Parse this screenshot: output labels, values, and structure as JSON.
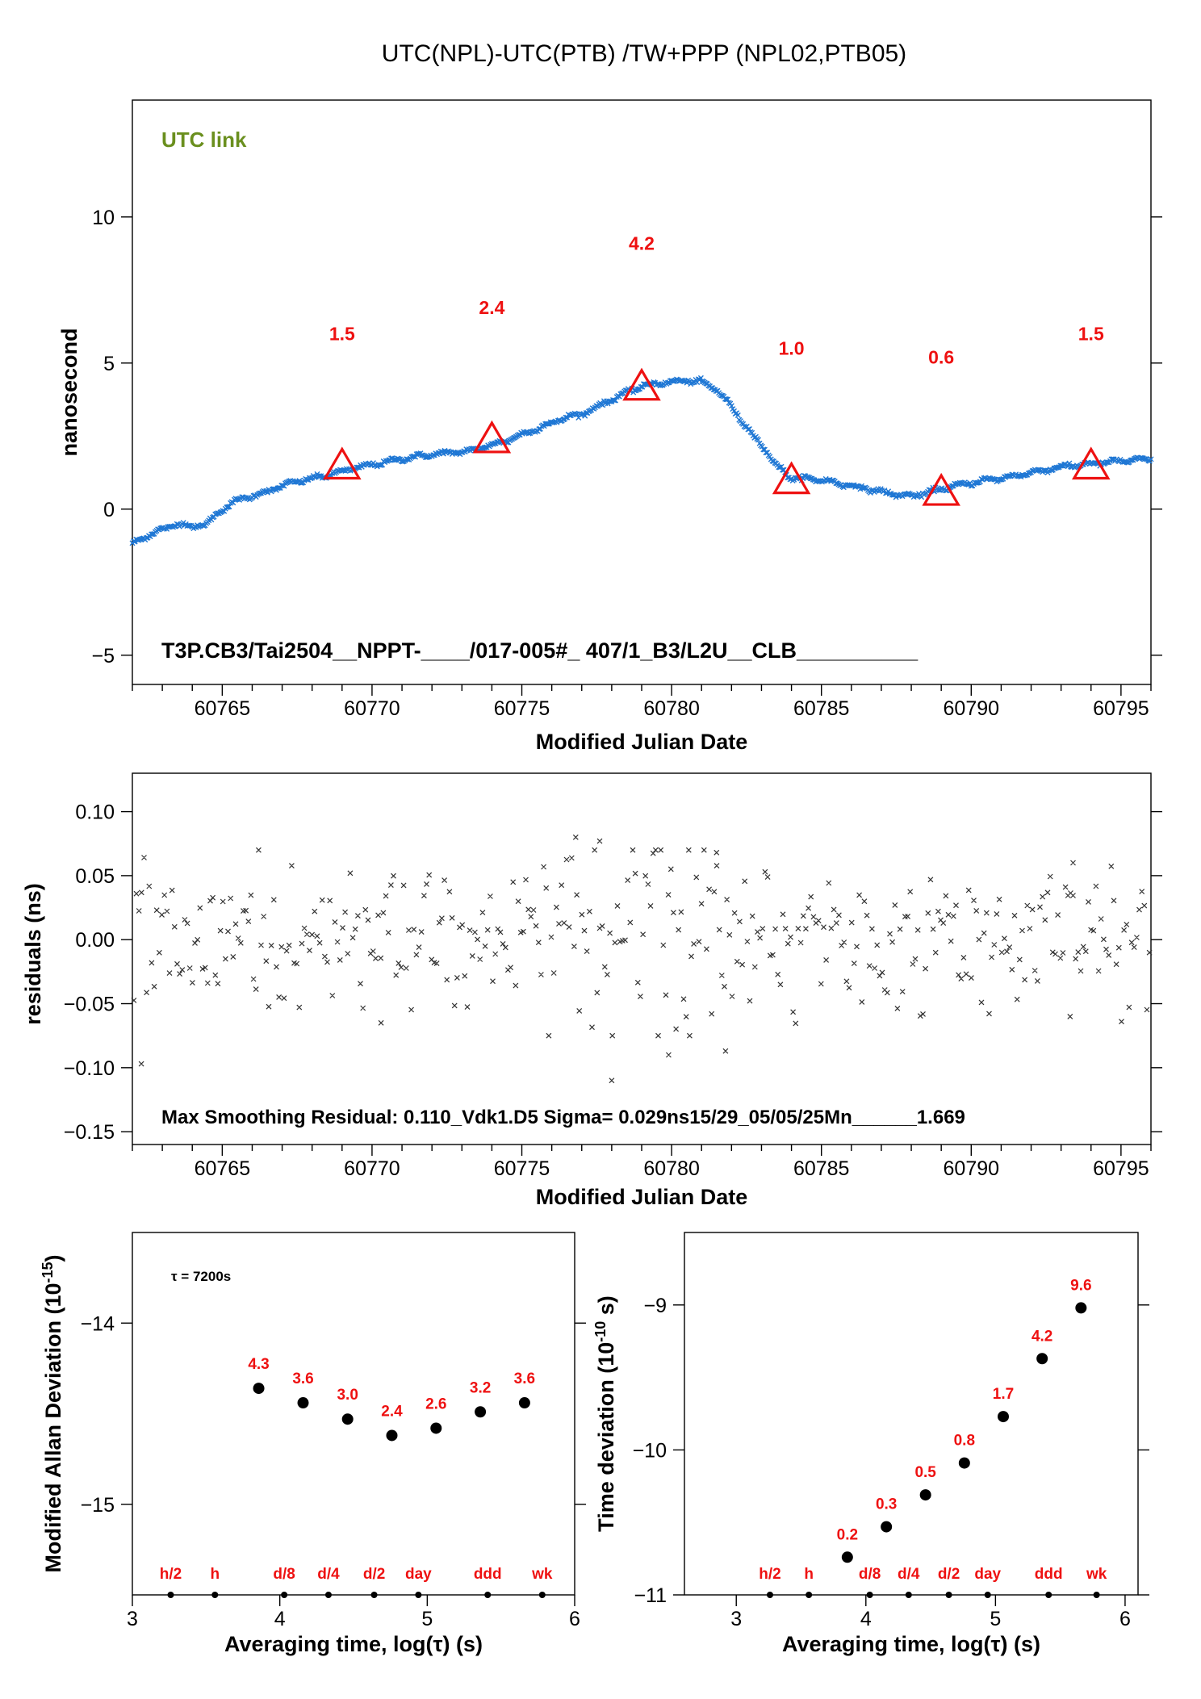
{
  "title": "UTC(NPL)-UTC(PTB)  /TW+PPP  (NPL02,PTB05)",
  "colors": {
    "series": "#1f77d4",
    "markers": "#ee1111",
    "utc_link": "#6a8f1e",
    "residuals": "#333333"
  },
  "chart_data": [
    {
      "type": "line",
      "name": "link",
      "title": "UTC(NPL)-UTC(PTB)  /TW+PPP  (NPL02,PTB05)",
      "annotation": "UTC link",
      "footer": "T3P.CB3/Tai2504__NPPT-____/017-005#_  407/1_B3/L2U__CLB__________",
      "xlabel": "Modified Julian Date",
      "ylabel": "nanosecond",
      "xlim": [
        60762,
        60796
      ],
      "ylim": [
        -6,
        14
      ],
      "xticks": [
        60765,
        60770,
        60775,
        60780,
        60785,
        60790,
        60795
      ],
      "yticks": [
        -5,
        0,
        5,
        10
      ],
      "yticklabels": [
        "−5",
        "0",
        "5",
        "10"
      ],
      "series_x": [
        60762.0,
        60762.5,
        60763.0,
        60763.5,
        60764.0,
        60764.5,
        60765.0,
        60765.5,
        60766.0,
        60766.5,
        60767.0,
        60767.5,
        60768.0,
        60768.5,
        60769.0,
        60769.5,
        60770.0,
        60770.5,
        60771.0,
        60771.5,
        60772.0,
        60772.5,
        60773.0,
        60773.5,
        60774.0,
        60774.5,
        60775.0,
        60775.5,
        60776.0,
        60776.5,
        60777.0,
        60777.5,
        60778.0,
        60778.5,
        60779.0,
        60779.5,
        60780.0,
        60780.5,
        60781.0,
        60781.5,
        60782.0,
        60782.5,
        60783.0,
        60783.5,
        60784.0,
        60784.5,
        60785.0,
        60785.5,
        60786.0,
        60786.5,
        60787.0,
        60787.5,
        60788.0,
        60788.5,
        60789.0,
        60789.5,
        60790.0,
        60790.5,
        60791.0,
        60791.5,
        60792.0,
        60792.5,
        60793.0,
        60793.5,
        60794.0,
        60794.5,
        60795.0,
        60795.5,
        60796.0
      ],
      "series_y": [
        -1.2,
        -0.9,
        -0.7,
        -0.5,
        -0.6,
        -0.5,
        0.0,
        0.3,
        0.45,
        0.6,
        0.8,
        0.95,
        1.05,
        1.15,
        1.3,
        1.42,
        1.52,
        1.62,
        1.72,
        1.8,
        1.87,
        1.93,
        1.95,
        2.05,
        2.2,
        2.35,
        2.55,
        2.75,
        2.95,
        3.15,
        3.25,
        3.5,
        3.75,
        4.0,
        4.2,
        4.3,
        4.35,
        4.4,
        4.35,
        4.1,
        3.5,
        2.8,
        2.2,
        1.5,
        1.05,
        1.05,
        1.0,
        0.9,
        0.8,
        0.7,
        0.6,
        0.5,
        0.45,
        0.55,
        0.7,
        0.8,
        0.9,
        1.0,
        1.05,
        1.15,
        1.25,
        1.35,
        1.45,
        1.5,
        1.55,
        1.6,
        1.65,
        1.68,
        1.7
      ],
      "markers": [
        {
          "x": 60769,
          "y": 1.5,
          "label": "1.5"
        },
        {
          "x": 60774,
          "y": 2.4,
          "label": "2.4"
        },
        {
          "x": 60779,
          "y": 4.2,
          "label": "4.2"
        },
        {
          "x": 60784,
          "y": 1.0,
          "label": "1.0"
        },
        {
          "x": 60789,
          "y": 0.6,
          "label": "0.6"
        },
        {
          "x": 60794,
          "y": 1.5,
          "label": "1.5"
        }
      ],
      "marker_label_y": [
        6.0,
        6.9,
        9.1,
        5.5,
        5.2,
        6.0
      ]
    },
    {
      "type": "scatter",
      "name": "residuals",
      "xlabel": "Modified Julian Date",
      "ylabel": "residuals (ns)",
      "annotation": "Max Smoothing Residual: 0.110_Vdk1.D5  Sigma= 0.029ns15/29_05/05/25Mn______1.669",
      "xlim": [
        60762,
        60796
      ],
      "ylim": [
        -0.16,
        0.13
      ],
      "xticks": [
        60765,
        60770,
        60775,
        60780,
        60785,
        60790,
        60795
      ],
      "yticks": [
        -0.15,
        -0.1,
        -0.05,
        0.0,
        0.05,
        0.1
      ],
      "yticklabels": [
        "−0.15",
        "−0.10",
        "−0.05",
        "0.00",
        "0.05",
        "0.10"
      ],
      "sigma": 0.029,
      "max_residual": 0.11,
      "n_points": 400,
      "notable_points": [
        {
          "x": 60762.3,
          "y": -0.097
        },
        {
          "x": 60770.3,
          "y": -0.065
        },
        {
          "x": 60776.8,
          "y": 0.08
        },
        {
          "x": 60777.6,
          "y": 0.077
        },
        {
          "x": 60778.0,
          "y": -0.11
        },
        {
          "x": 60779.9,
          "y": -0.09
        },
        {
          "x": 60780.6,
          "y": -0.075
        },
        {
          "x": 60781.5,
          "y": 0.068
        },
        {
          "x": 60781.8,
          "y": -0.087
        },
        {
          "x": 60793.4,
          "y": 0.06
        },
        {
          "x": 60793.3,
          "y": -0.06
        }
      ]
    },
    {
      "type": "scatter",
      "name": "mdev",
      "xlabel": "Averaging time, log(τ) (s)",
      "ylabel": "Modified Allan Deviation (10",
      "ylabel_sup": "-15",
      "ylabel_tail": ")",
      "annotation": "τ = 7200s",
      "xlim": [
        3,
        6
      ],
      "ylim": [
        -15.5,
        -13.5
      ],
      "xticks": [
        3,
        4,
        5,
        6
      ],
      "yticks": [
        -14,
        -15
      ],
      "yticklabels": [
        "−14",
        "−15"
      ],
      "points": [
        {
          "x": 3.857,
          "y": -14.36,
          "label": "4.3"
        },
        {
          "x": 4.158,
          "y": -14.44,
          "label": "3.6"
        },
        {
          "x": 4.46,
          "y": -14.53,
          "label": "3.0"
        },
        {
          "x": 4.76,
          "y": -14.62,
          "label": "2.4"
        },
        {
          "x": 5.06,
          "y": -14.58,
          "label": "2.6"
        },
        {
          "x": 5.36,
          "y": -14.49,
          "label": "3.2"
        },
        {
          "x": 5.66,
          "y": -14.44,
          "label": "3.6"
        }
      ],
      "base_labels": [
        {
          "x": 3.26,
          "label": "h/2"
        },
        {
          "x": 3.56,
          "label": "h"
        },
        {
          "x": 4.03,
          "label": "d/8"
        },
        {
          "x": 4.33,
          "label": "d/4"
        },
        {
          "x": 4.64,
          "label": "d/2"
        },
        {
          "x": 4.94,
          "label": "day"
        },
        {
          "x": 5.41,
          "label": "ddd"
        },
        {
          "x": 5.78,
          "label": "wk"
        }
      ]
    },
    {
      "type": "scatter",
      "name": "tdev",
      "xlabel": "Averaging time, log(τ) (s)",
      "ylabel": "Time deviation (10",
      "ylabel_sup": "-10",
      "ylabel_tail": " s)",
      "xlim": [
        2.6,
        6.1
      ],
      "ylim": [
        -11.0,
        -8.5
      ],
      "xticks": [
        3,
        4,
        5,
        6
      ],
      "yticks": [
        -9,
        -10,
        -11
      ],
      "yticklabels": [
        "−9",
        "−10",
        "−11"
      ],
      "points": [
        {
          "x": 3.857,
          "y": -10.74,
          "label": "0.2"
        },
        {
          "x": 4.158,
          "y": -10.53,
          "label": "0.3"
        },
        {
          "x": 4.46,
          "y": -10.31,
          "label": "0.5"
        },
        {
          "x": 4.76,
          "y": -10.09,
          "label": "0.8"
        },
        {
          "x": 5.06,
          "y": -9.77,
          "label": "1.7"
        },
        {
          "x": 5.36,
          "y": -9.37,
          "label": "4.2"
        },
        {
          "x": 5.66,
          "y": -9.02,
          "label": "9.6"
        }
      ],
      "base_labels": [
        {
          "x": 3.26,
          "label": "h/2"
        },
        {
          "x": 3.56,
          "label": "h"
        },
        {
          "x": 4.03,
          "label": "d/8"
        },
        {
          "x": 4.33,
          "label": "d/4"
        },
        {
          "x": 4.64,
          "label": "d/2"
        },
        {
          "x": 4.94,
          "label": "day"
        },
        {
          "x": 5.41,
          "label": "ddd"
        },
        {
          "x": 5.78,
          "label": "wk"
        }
      ]
    }
  ]
}
